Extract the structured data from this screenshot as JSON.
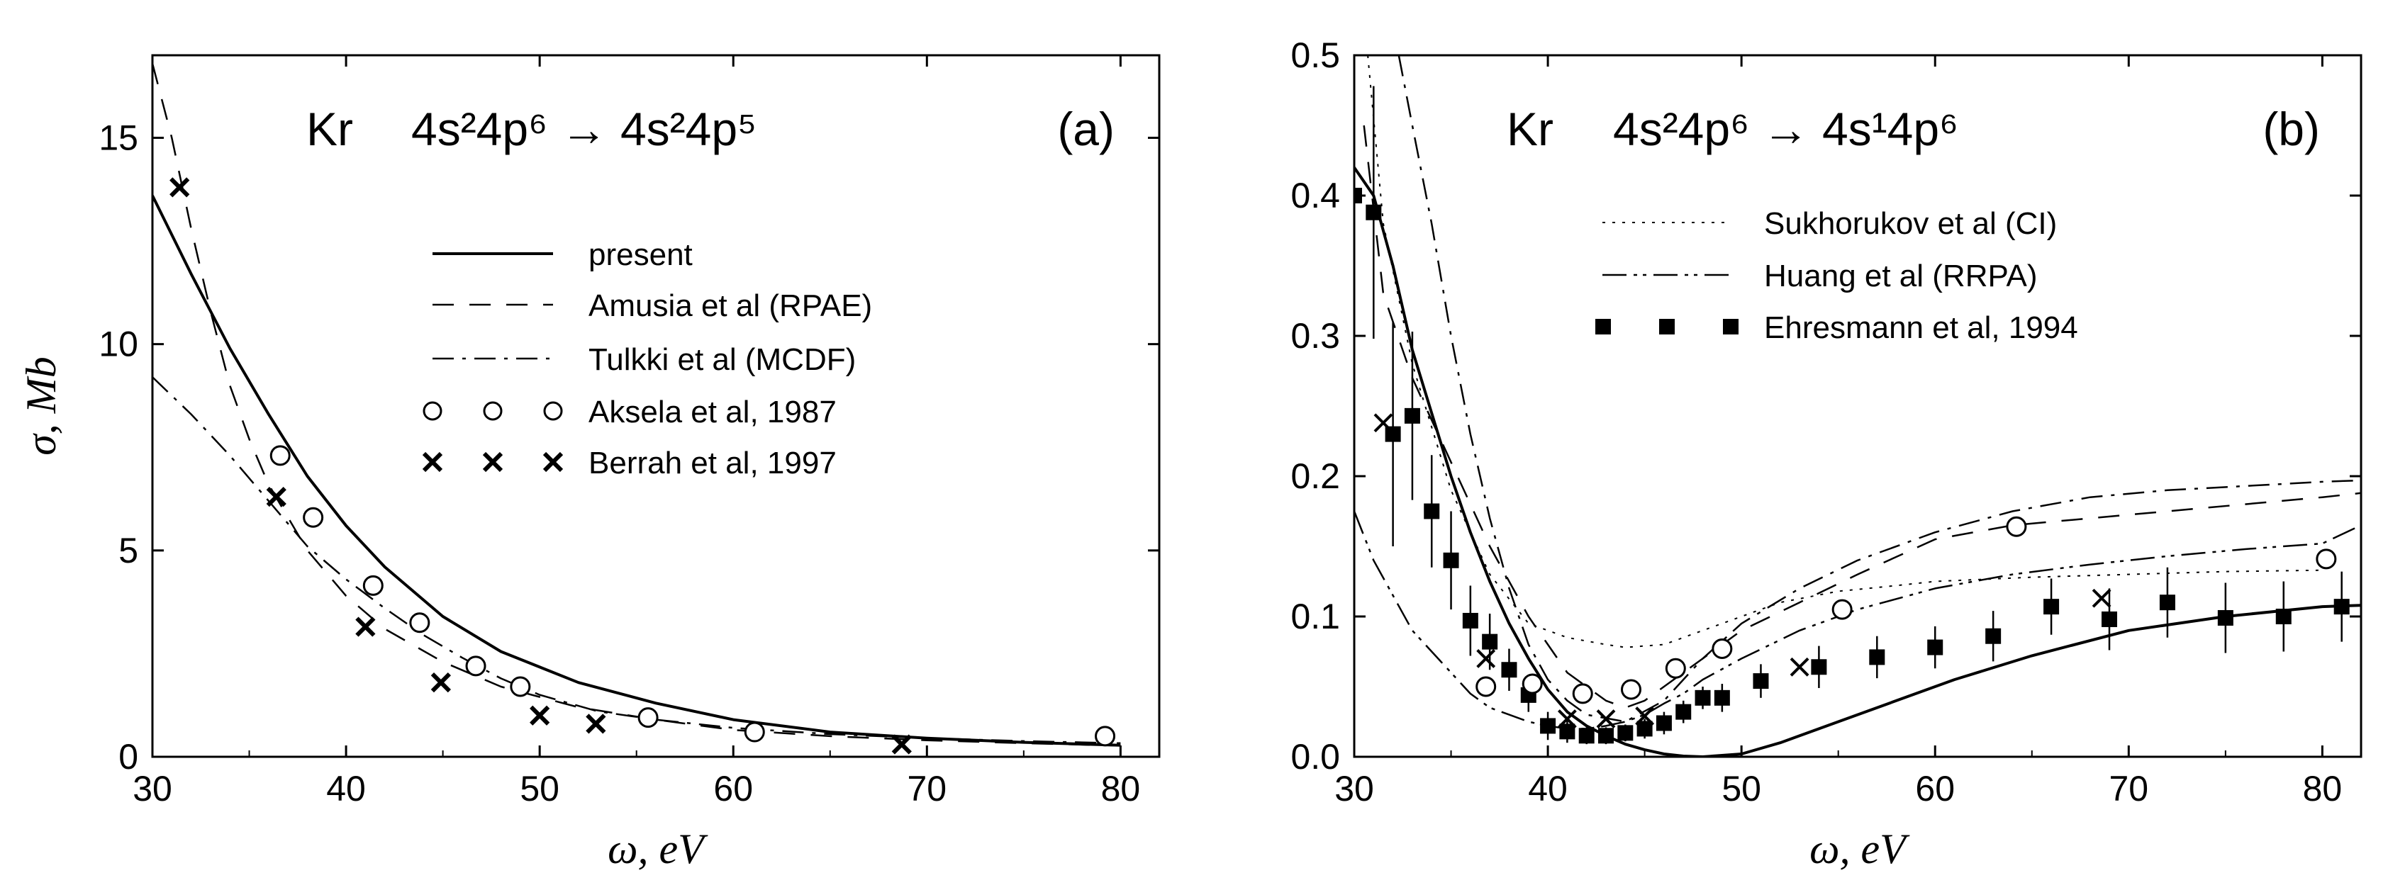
{
  "chart_data": [
    {
      "type": "line",
      "panel_label": "(a)",
      "title": {
        "element": "Kr",
        "transition": "4s²4p⁶ → 4s²4p⁵"
      },
      "xlabel": "ω, eV",
      "ylabel": "σ, Mb",
      "xlim": [
        30,
        82
      ],
      "ylim": [
        0,
        17
      ],
      "xticks": [
        30,
        40,
        50,
        60,
        70,
        80
      ],
      "yticks": [
        0,
        5,
        10,
        15
      ],
      "series": [
        {
          "name": "present",
          "style": "solid",
          "x": [
            30,
            32,
            34,
            36,
            38,
            40,
            42,
            45,
            48,
            52,
            56,
            60,
            65,
            70,
            75,
            80
          ],
          "y": [
            13.6,
            11.7,
            9.9,
            8.3,
            6.8,
            5.6,
            4.6,
            3.4,
            2.55,
            1.8,
            1.3,
            0.9,
            0.6,
            0.45,
            0.35,
            0.28
          ]
        },
        {
          "name": "Amusia et al (RPAE)",
          "style": "dashed",
          "x": [
            30,
            31,
            32,
            33,
            34,
            35,
            36,
            38,
            40,
            42,
            45,
            48,
            52,
            56,
            60,
            65,
            70,
            75,
            80
          ],
          "y": [
            16.8,
            15.0,
            12.8,
            10.8,
            9.0,
            7.7,
            6.6,
            5.0,
            3.9,
            3.1,
            2.3,
            1.7,
            1.2,
            0.9,
            0.65,
            0.5,
            0.4,
            0.33,
            0.27
          ]
        },
        {
          "name": "Tulkki et al (MCDF)",
          "style": "dash-dot",
          "x": [
            30,
            32,
            34,
            36,
            38,
            40,
            42,
            44,
            46,
            48,
            50,
            53,
            56,
            60,
            65,
            70,
            75,
            80
          ],
          "y": [
            9.2,
            8.3,
            7.3,
            6.2,
            5.1,
            4.3,
            3.6,
            2.95,
            2.4,
            1.9,
            1.5,
            1.1,
            0.9,
            0.7,
            0.55,
            0.45,
            0.38,
            0.33
          ]
        },
        {
          "name": "Aksela et al, 1987",
          "style": "open-circle",
          "x": [
            36.6,
            38.3,
            41.4,
            43.8,
            46.7,
            49.0,
            55.6,
            61.1,
            79.2
          ],
          "y": [
            7.3,
            5.8,
            4.15,
            3.25,
            2.2,
            1.7,
            0.95,
            0.6,
            0.5
          ]
        },
        {
          "name": "Berrah et al, 1997",
          "style": "cross",
          "x": [
            31.4,
            36.4,
            41.0,
            44.9,
            50.0,
            52.9,
            68.7
          ],
          "y": [
            13.8,
            6.3,
            3.15,
            1.8,
            1.0,
            0.8,
            0.3
          ]
        }
      ]
    },
    {
      "type": "line",
      "panel_label": "(b)",
      "title": {
        "element": "Kr",
        "transition": "4s²4p⁶ → 4s¹4p⁶"
      },
      "xlabel": "ω, eV",
      "ylabel": "",
      "xlim": [
        30,
        82
      ],
      "ylim": [
        0,
        0.5
      ],
      "xticks": [
        30,
        40,
        50,
        60,
        70,
        80
      ],
      "yticks": [
        0.0,
        0.1,
        0.2,
        0.3,
        0.4,
        0.5
      ],
      "ytick_labels": [
        "0.0",
        "0.1",
        "0.2",
        "0.3",
        "0.4",
        "0.5"
      ],
      "series": [
        {
          "name": "present",
          "style": "solid",
          "x": [
            30,
            31,
            32,
            33,
            34,
            35,
            36,
            37,
            38,
            39,
            40,
            41,
            42,
            43,
            44,
            45,
            46,
            47,
            48,
            50,
            52,
            55,
            58,
            61,
            65,
            70,
            75,
            80,
            82
          ],
          "y": [
            0.42,
            0.4,
            0.35,
            0.29,
            0.245,
            0.2,
            0.16,
            0.125,
            0.095,
            0.07,
            0.048,
            0.032,
            0.022,
            0.015,
            0.009,
            0.005,
            0.002,
            0.0005,
            0.0,
            0.002,
            0.01,
            0.025,
            0.04,
            0.055,
            0.072,
            0.09,
            0.1,
            0.107,
            0.108
          ]
        },
        {
          "name": "Amusia et al (RPAE)",
          "style": "dashed",
          "x": [
            30.5,
            31.5,
            33,
            35,
            37,
            39,
            41,
            43,
            44,
            45,
            47,
            50,
            53,
            56,
            60,
            64,
            68,
            72,
            76,
            80,
            82
          ],
          "y": [
            0.45,
            0.33,
            0.27,
            0.21,
            0.15,
            0.1,
            0.06,
            0.04,
            0.035,
            0.04,
            0.06,
            0.09,
            0.11,
            0.13,
            0.155,
            0.165,
            0.17,
            0.175,
            0.18,
            0.185,
            0.188
          ]
        },
        {
          "name": "Tulkki et al (MCDF)",
          "style": "dash-dot",
          "x": [
            32.3,
            33,
            34,
            35,
            36,
            37,
            38,
            39,
            40,
            41,
            42,
            44,
            46,
            48,
            50,
            53,
            56,
            60,
            64,
            68,
            72,
            76,
            80,
            82
          ],
          "y": [
            0.5,
            0.45,
            0.38,
            0.3,
            0.23,
            0.17,
            0.12,
            0.08,
            0.055,
            0.04,
            0.03,
            0.025,
            0.04,
            0.07,
            0.095,
            0.12,
            0.14,
            0.16,
            0.175,
            0.185,
            0.19,
            0.193,
            0.196,
            0.197
          ]
        },
        {
          "name": "Sukhorukov et al (CI)",
          "style": "dotted",
          "x": [
            30.7,
            31.5,
            33,
            35,
            37,
            39,
            41,
            43,
            44,
            46,
            48,
            50,
            52,
            55,
            58,
            60,
            65,
            70,
            75,
            80
          ],
          "y": [
            0.5,
            0.38,
            0.28,
            0.19,
            0.13,
            0.095,
            0.085,
            0.08,
            0.078,
            0.08,
            0.09,
            0.1,
            0.11,
            0.118,
            0.122,
            0.125,
            0.128,
            0.13,
            0.132,
            0.133
          ]
        },
        {
          "name": "Huang et al (RRPA)",
          "style": "dash-dot-dot",
          "x": [
            30,
            31,
            32,
            33,
            34,
            35,
            36,
            37,
            38,
            39,
            40,
            41,
            42,
            43,
            44,
            45,
            46,
            47,
            48,
            50,
            53,
            56,
            60,
            64,
            68,
            72,
            76,
            80,
            82
          ],
          "y": [
            0.175,
            0.14,
            0.115,
            0.09,
            0.075,
            0.06,
            0.045,
            0.035,
            0.03,
            0.025,
            0.022,
            0.02,
            0.02,
            0.022,
            0.025,
            0.03,
            0.038,
            0.045,
            0.055,
            0.07,
            0.09,
            0.105,
            0.12,
            0.13,
            0.137,
            0.143,
            0.148,
            0.152,
            0.165
          ]
        },
        {
          "name": "Ehresmann et al, 1994",
          "style": "filled-square",
          "x": [
            30.0,
            31.0,
            32.0,
            33.0,
            34.0,
            35.0,
            36.0,
            37.0,
            38.0,
            39.0,
            40.0,
            41.0,
            42.0,
            43.0,
            44.0,
            45.0,
            46.0,
            47.0,
            48.0,
            49.0,
            51.0,
            54.0,
            57.0,
            60.0,
            63.0,
            66.0,
            69.0,
            72.0,
            75.0,
            78.0,
            81.0
          ],
          "y": [
            0.4,
            0.388,
            0.23,
            0.243,
            0.175,
            0.14,
            0.097,
            0.082,
            0.062,
            0.044,
            0.022,
            0.018,
            0.015,
            0.015,
            0.017,
            0.02,
            0.024,
            0.032,
            0.042,
            0.042,
            0.054,
            0.064,
            0.071,
            0.078,
            0.086,
            0.107,
            0.098,
            0.11,
            0.099,
            0.1,
            0.107
          ],
          "yerr": [
            0.02,
            0.09,
            0.08,
            0.06,
            0.04,
            0.035,
            0.025,
            0.02,
            0.015,
            0.012,
            0.01,
            0.008,
            0.006,
            0.006,
            0.006,
            0.007,
            0.008,
            0.008,
            0.008,
            0.01,
            0.012,
            0.015,
            0.015,
            0.015,
            0.018,
            0.02,
            0.022,
            0.025,
            0.025,
            0.025,
            0.025
          ]
        },
        {
          "name": "Aksela et al, 1987",
          "style": "open-circle",
          "x": [
            36.8,
            39.2,
            41.8,
            44.3,
            46.6,
            49.0,
            55.2,
            64.2,
            80.2
          ],
          "y": [
            0.05,
            0.052,
            0.045,
            0.048,
            0.063,
            0.077,
            0.105,
            0.164,
            0.141
          ]
        },
        {
          "name": "Berrah et al, 1997",
          "style": "cross",
          "x": [
            31.5,
            36.8,
            41.0,
            43.0,
            45.0,
            53.0,
            68.6
          ],
          "y": [
            0.238,
            0.07,
            0.027,
            0.027,
            0.029,
            0.064,
            0.113
          ]
        }
      ]
    }
  ],
  "panel_a": {
    "title_element": "Kr",
    "title_transition": "4s²4p⁶ → 4s²4p⁵",
    "panel_label": "(a)",
    "legend": [
      "present",
      "Amusia et al (RPAE)",
      "Tulkki et al (MCDF)",
      "Aksela et al, 1987",
      "Berrah et al, 1997"
    ],
    "xlabel": "ω, eV",
    "ylabel": "σ, Mb"
  },
  "panel_b": {
    "title_element": "Kr",
    "title_transition": "4s²4p⁶ → 4s¹4p⁶",
    "panel_label": "(b)",
    "legend": [
      "Sukhorukov et al (CI)",
      "Huang et al (RRPA)",
      "Ehresmann et al, 1994"
    ],
    "xlabel": "ω, eV"
  }
}
